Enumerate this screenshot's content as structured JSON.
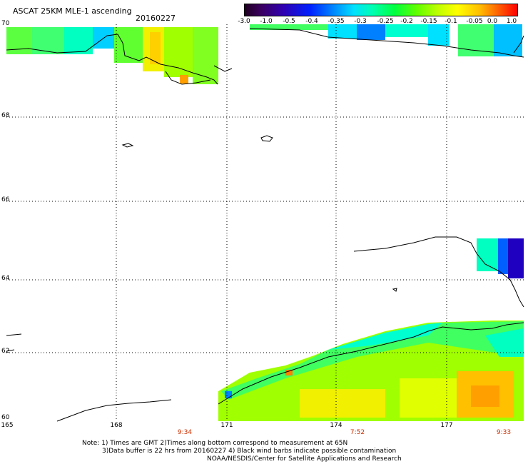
{
  "header": {
    "title": "ASCAT 25KM MLE-1 ascending",
    "date": "20160227"
  },
  "colorbar": {
    "labels": [
      "-3.0",
      "-1.0",
      "-0.5",
      "-0.4",
      "-0.35",
      "-0.3",
      "-0.25",
      "-0.2",
      "-0.15",
      "-0.1",
      "-0.05",
      "0.0",
      "1.0"
    ]
  },
  "axes": {
    "lat_labels": [
      "70",
      "68",
      "66",
      "64",
      "62",
      "60"
    ],
    "lon_labels": [
      "165",
      "168",
      "171",
      "174",
      "177"
    ],
    "time_labels": [
      "9:34",
      "7:52",
      "9:33"
    ]
  },
  "notes": {
    "line1": "Note: 1) Times are GMT 2)Times along bottom correspond to measurement at 65N",
    "line2": "3)Data buffer is 22 hrs from 20160227 4) Black wind barbs indicate possible contamination",
    "line3": "NOAA/NESDIS/Center for Satellite Applications and Research"
  },
  "colors": {
    "gridline": "#000000",
    "time_text": "#d03000"
  }
}
